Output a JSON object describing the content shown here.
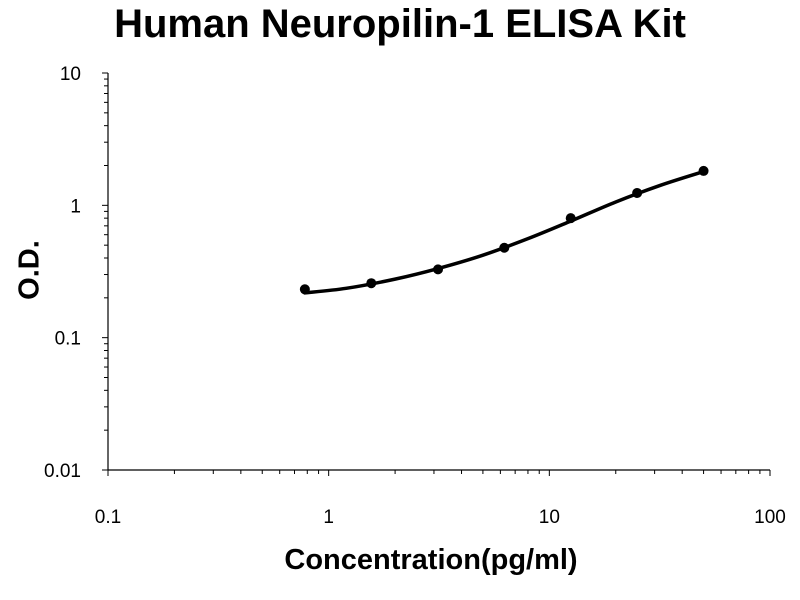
{
  "chart_data": {
    "type": "scatter",
    "title": "Human Neuropilin-1 ELISA Kit",
    "xlabel": "Concentration(pg/ml)",
    "ylabel": "O.D.",
    "x_scale": "log",
    "y_scale": "log",
    "xlim": [
      0.1,
      100
    ],
    "ylim": [
      0.01,
      10
    ],
    "x_ticks": [
      "0.1",
      "1",
      "10",
      "100"
    ],
    "y_ticks": [
      "10",
      "1",
      "0.1",
      "0.01"
    ],
    "grid": false,
    "legend": "none",
    "series": [
      {
        "points": [
          {
            "x": 0.78,
            "y": 0.232
          },
          {
            "x": 1.56,
            "y": 0.258
          },
          {
            "x": 3.13,
            "y": 0.328
          },
          {
            "x": 6.25,
            "y": 0.478
          },
          {
            "x": 12.5,
            "y": 0.8
          },
          {
            "x": 25,
            "y": 1.24
          },
          {
            "x": 50,
            "y": 1.82
          }
        ],
        "trendline": [
          {
            "x": 0.78,
            "y": 0.218
          },
          {
            "x": 1.2,
            "y": 0.236
          },
          {
            "x": 2,
            "y": 0.277
          },
          {
            "x": 3.13,
            "y": 0.333
          },
          {
            "x": 5,
            "y": 0.42
          },
          {
            "x": 8,
            "y": 0.56
          },
          {
            "x": 12.5,
            "y": 0.76
          },
          {
            "x": 20,
            "y": 1.06
          },
          {
            "x": 32,
            "y": 1.42
          },
          {
            "x": 50,
            "y": 1.8
          }
        ]
      }
    ],
    "colors": {
      "marker": "#000000",
      "line": "#000000",
      "axis": "#000000"
    }
  }
}
